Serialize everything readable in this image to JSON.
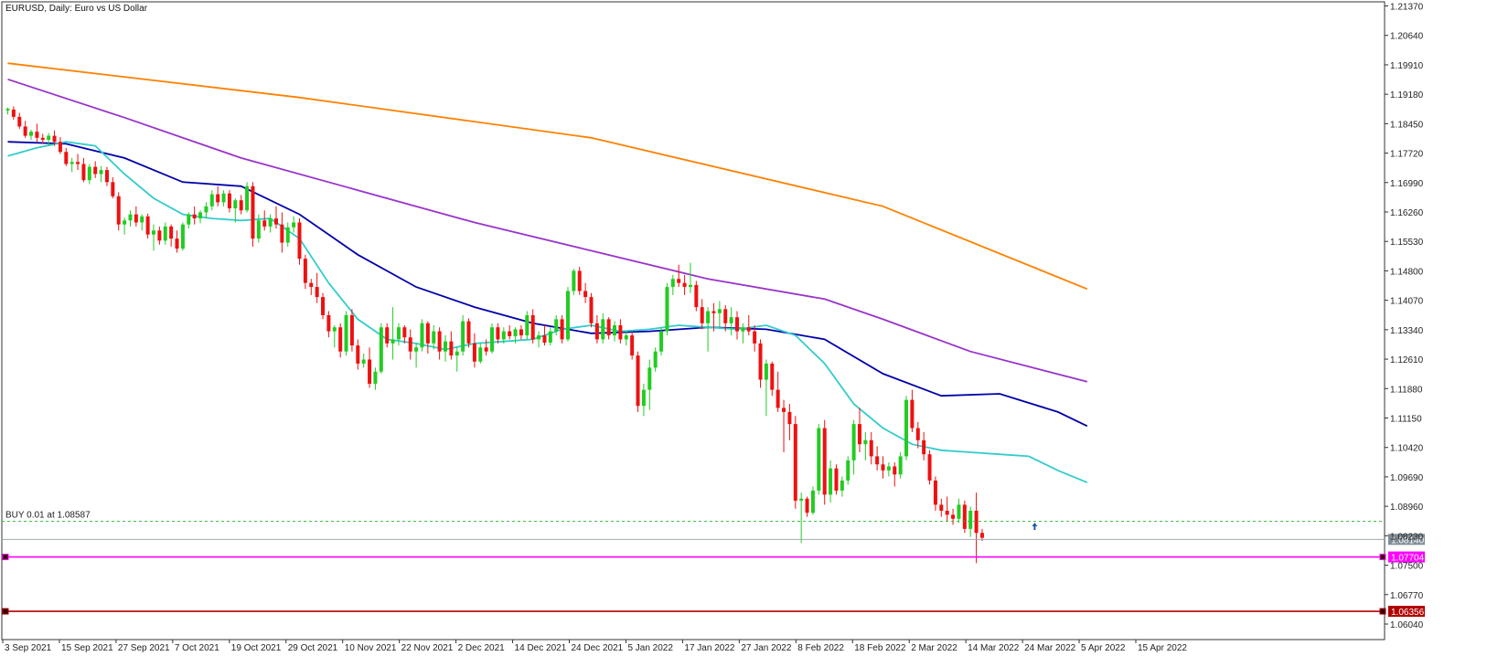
{
  "chart_data": {
    "type": "candlestick",
    "title": "EURUSD, Daily:  Euro vs US Dollar",
    "symbol": "EURUSD",
    "timeframe": "Daily",
    "ylim": [
      1.0575,
      1.2137
    ],
    "y_ticks": [
      "1.21370",
      "1.20640",
      "1.19910",
      "1.19180",
      "1.18450",
      "1.17720",
      "1.16990",
      "1.16260",
      "1.15530",
      "1.14800",
      "1.14070",
      "1.13340",
      "1.12610",
      "1.11880",
      "1.11150",
      "1.10420",
      "1.09690",
      "1.08960",
      "1.08230",
      "1.07500",
      "1.06770",
      "1.06040"
    ],
    "x_ticks": [
      "3 Sep 2021",
      "15 Sep 2021",
      "27 Sep 2021",
      "7 Oct 2021",
      "19 Oct 2021",
      "29 Oct 2021",
      "10 Nov 2021",
      "22 Nov 2021",
      "2 Dec 2021",
      "14 Dec 2021",
      "24 Dec 2021",
      "5 Jan 2022",
      "17 Jan 2022",
      "27 Jan 2022",
      "8 Feb 2022",
      "18 Feb 2022",
      "2 Mar 2022",
      "14 Mar 2022",
      "24 Mar 2022",
      "5 Apr 2022",
      "15 Apr 2022"
    ],
    "colors": {
      "bull": "#22cc22",
      "bear": "#ee1111",
      "grid_dash": "#33bb33"
    },
    "candles": [
      [
        1.1878,
        1.1885,
        1.1868,
        1.1882
      ],
      [
        1.188,
        1.1888,
        1.1855,
        1.1862
      ],
      [
        1.1862,
        1.1872,
        1.1832,
        1.1838
      ],
      [
        1.1838,
        1.1852,
        1.181,
        1.1815
      ],
      [
        1.1815,
        1.183,
        1.1805,
        1.1825
      ],
      [
        1.1825,
        1.1845,
        1.18,
        1.181
      ],
      [
        1.181,
        1.182,
        1.1795,
        1.1805
      ],
      [
        1.1805,
        1.1822,
        1.179,
        1.1815
      ],
      [
        1.1815,
        1.1828,
        1.179,
        1.18
      ],
      [
        1.18,
        1.1812,
        1.177,
        1.1775
      ],
      [
        1.1775,
        1.1785,
        1.174,
        1.1745
      ],
      [
        1.1745,
        1.176,
        1.1725,
        1.175
      ],
      [
        1.175,
        1.177,
        1.173,
        1.1745
      ],
      [
        1.1745,
        1.176,
        1.17,
        1.1705
      ],
      [
        1.1705,
        1.1745,
        1.1695,
        1.1738
      ],
      [
        1.1738,
        1.1752,
        1.171,
        1.172
      ],
      [
        1.172,
        1.174,
        1.17,
        1.173
      ],
      [
        1.173,
        1.1738,
        1.169,
        1.17
      ],
      [
        1.17,
        1.1712,
        1.166,
        1.1665
      ],
      [
        1.1665,
        1.1675,
        1.158,
        1.1595
      ],
      [
        1.1595,
        1.1612,
        1.157,
        1.1605
      ],
      [
        1.1605,
        1.163,
        1.159,
        1.162
      ],
      [
        1.162,
        1.164,
        1.159,
        1.16
      ],
      [
        1.16,
        1.162,
        1.158,
        1.1615
      ],
      [
        1.1615,
        1.1622,
        1.156,
        1.157
      ],
      [
        1.157,
        1.1595,
        1.153,
        1.158
      ],
      [
        1.158,
        1.159,
        1.1545,
        1.1555
      ],
      [
        1.1555,
        1.16,
        1.1545,
        1.159
      ],
      [
        1.159,
        1.1595,
        1.154,
        1.156
      ],
      [
        1.156,
        1.158,
        1.1525,
        1.1535
      ],
      [
        1.1535,
        1.16,
        1.153,
        1.1595
      ],
      [
        1.1595,
        1.1625,
        1.1585,
        1.162
      ],
      [
        1.162,
        1.164,
        1.1595,
        1.161
      ],
      [
        1.161,
        1.163,
        1.1598,
        1.1625
      ],
      [
        1.1625,
        1.165,
        1.161,
        1.164
      ],
      [
        1.164,
        1.168,
        1.163,
        1.167
      ],
      [
        1.167,
        1.169,
        1.164,
        1.165
      ],
      [
        1.165,
        1.168,
        1.164,
        1.1672
      ],
      [
        1.1672,
        1.168,
        1.1625,
        1.1635
      ],
      [
        1.1635,
        1.166,
        1.16,
        1.1655
      ],
      [
        1.1655,
        1.1668,
        1.162,
        1.163
      ],
      [
        1.163,
        1.17,
        1.1625,
        1.169
      ],
      [
        1.169,
        1.17,
        1.154,
        1.156
      ],
      [
        1.156,
        1.162,
        1.155,
        1.1605
      ],
      [
        1.1605,
        1.163,
        1.158,
        1.159
      ],
      [
        1.159,
        1.162,
        1.1575,
        1.161
      ],
      [
        1.161,
        1.164,
        1.1585,
        1.1595
      ],
      [
        1.1595,
        1.1625,
        1.1525,
        1.155
      ],
      [
        1.155,
        1.16,
        1.154,
        1.1588
      ],
      [
        1.1588,
        1.1615,
        1.1575,
        1.16
      ],
      [
        1.16,
        1.161,
        1.1495,
        1.151
      ],
      [
        1.151,
        1.152,
        1.1435,
        1.145
      ],
      [
        1.145,
        1.146,
        1.142,
        1.144
      ],
      [
        1.144,
        1.1475,
        1.14,
        1.1415
      ],
      [
        1.1415,
        1.1425,
        1.136,
        1.137
      ],
      [
        1.137,
        1.138,
        1.1315,
        1.133
      ],
      [
        1.133,
        1.1345,
        1.129,
        1.134
      ],
      [
        1.134,
        1.135,
        1.1265,
        1.128
      ],
      [
        1.128,
        1.138,
        1.127,
        1.137
      ],
      [
        1.137,
        1.1385,
        1.128,
        1.1295
      ],
      [
        1.1295,
        1.131,
        1.1235,
        1.125
      ],
      [
        1.125,
        1.1275,
        1.124,
        1.126
      ],
      [
        1.126,
        1.129,
        1.119,
        1.12
      ],
      [
        1.12,
        1.124,
        1.1185,
        1.123
      ],
      [
        1.123,
        1.135,
        1.1225,
        1.134
      ],
      [
        1.134,
        1.135,
        1.129,
        1.13
      ],
      [
        1.13,
        1.139,
        1.126,
        1.131
      ],
      [
        1.131,
        1.135,
        1.1295,
        1.134
      ],
      [
        1.134,
        1.1345,
        1.13,
        1.1315
      ],
      [
        1.1315,
        1.1335,
        1.126,
        1.128
      ],
      [
        1.128,
        1.13,
        1.124,
        1.129
      ],
      [
        1.129,
        1.136,
        1.128,
        1.135
      ],
      [
        1.135,
        1.1355,
        1.1275,
        1.13
      ],
      [
        1.13,
        1.1345,
        1.1285,
        1.133
      ],
      [
        1.133,
        1.134,
        1.126,
        1.128
      ],
      [
        1.128,
        1.132,
        1.1255,
        1.1305
      ],
      [
        1.1305,
        1.133,
        1.126,
        1.127
      ],
      [
        1.127,
        1.129,
        1.123,
        1.128
      ],
      [
        1.128,
        1.137,
        1.127,
        1.1355
      ],
      [
        1.1355,
        1.1362,
        1.129,
        1.13
      ],
      [
        1.13,
        1.1325,
        1.124,
        1.1255
      ],
      [
        1.1255,
        1.13,
        1.125,
        1.129
      ],
      [
        1.129,
        1.131,
        1.127,
        1.128
      ],
      [
        1.128,
        1.135,
        1.1275,
        1.134
      ],
      [
        1.134,
        1.135,
        1.13,
        1.131
      ],
      [
        1.131,
        1.134,
        1.13,
        1.133
      ],
      [
        1.133,
        1.1345,
        1.131,
        1.1318
      ],
      [
        1.1318,
        1.134,
        1.13,
        1.1335
      ],
      [
        1.1335,
        1.1345,
        1.131,
        1.132
      ],
      [
        1.132,
        1.138,
        1.131,
        1.137
      ],
      [
        1.137,
        1.1385,
        1.13,
        1.131
      ],
      [
        1.131,
        1.133,
        1.129,
        1.132
      ],
      [
        1.132,
        1.1345,
        1.1295,
        1.1302
      ],
      [
        1.1302,
        1.134,
        1.1295,
        1.133
      ],
      [
        1.133,
        1.137,
        1.132,
        1.136
      ],
      [
        1.136,
        1.137,
        1.13,
        1.131
      ],
      [
        1.131,
        1.144,
        1.1305,
        1.143
      ],
      [
        1.143,
        1.1485,
        1.142,
        1.148
      ],
      [
        1.148,
        1.149,
        1.142,
        1.143
      ],
      [
        1.143,
        1.145,
        1.14,
        1.1415
      ],
      [
        1.1415,
        1.1425,
        1.134,
        1.135
      ],
      [
        1.135,
        1.137,
        1.13,
        1.131
      ],
      [
        1.131,
        1.1375,
        1.13,
        1.136
      ],
      [
        1.136,
        1.1365,
        1.131,
        1.132
      ],
      [
        1.132,
        1.1355,
        1.1305,
        1.1345
      ],
      [
        1.1345,
        1.136,
        1.13,
        1.131
      ],
      [
        1.131,
        1.133,
        1.1295,
        1.132
      ],
      [
        1.132,
        1.133,
        1.126,
        1.127
      ],
      [
        1.127,
        1.128,
        1.113,
        1.1145
      ],
      [
        1.1145,
        1.12,
        1.112,
        1.1185
      ],
      [
        1.1185,
        1.126,
        1.1135,
        1.124
      ],
      [
        1.124,
        1.129,
        1.123,
        1.128
      ],
      [
        1.128,
        1.134,
        1.127,
        1.133
      ],
      [
        1.133,
        1.145,
        1.132,
        1.144
      ],
      [
        1.144,
        1.147,
        1.142,
        1.146
      ],
      [
        1.146,
        1.1495,
        1.144,
        1.145
      ],
      [
        1.145,
        1.147,
        1.142,
        1.144
      ],
      [
        1.144,
        1.15,
        1.1425,
        1.1445
      ],
      [
        1.1445,
        1.1455,
        1.138,
        1.139
      ],
      [
        1.139,
        1.141,
        1.1335,
        1.135
      ],
      [
        1.135,
        1.139,
        1.128,
        1.138
      ],
      [
        1.138,
        1.14,
        1.133,
        1.1375
      ],
      [
        1.1375,
        1.1405,
        1.134,
        1.1385
      ],
      [
        1.1385,
        1.1395,
        1.133,
        1.135
      ],
      [
        1.135,
        1.139,
        1.132,
        1.1365
      ],
      [
        1.1365,
        1.138,
        1.131,
        1.133
      ],
      [
        1.133,
        1.135,
        1.13,
        1.134
      ],
      [
        1.134,
        1.137,
        1.132,
        1.133
      ],
      [
        1.133,
        1.1345,
        1.128,
        1.13
      ],
      [
        1.13,
        1.131,
        1.119,
        1.121
      ],
      [
        1.121,
        1.126,
        1.112,
        1.125
      ],
      [
        1.125,
        1.1255,
        1.117,
        1.1185
      ],
      [
        1.1185,
        1.123,
        1.113,
        1.114
      ],
      [
        1.114,
        1.116,
        1.103,
        1.113
      ],
      [
        1.113,
        1.115,
        1.106,
        1.11
      ],
      [
        1.11,
        1.112,
        1.089,
        1.091
      ],
      [
        1.091,
        1.093,
        1.0805,
        1.0915
      ],
      [
        1.0915,
        1.092,
        1.087,
        1.088
      ],
      [
        1.088,
        1.0945,
        1.0875,
        1.0935
      ],
      [
        1.0935,
        1.11,
        1.0925,
        1.109
      ],
      [
        1.109,
        1.111,
        1.09,
        1.0925
      ],
      [
        1.0925,
        1.101,
        1.0905,
        1.099
      ],
      [
        1.099,
        1.1,
        1.0925,
        1.0935
      ],
      [
        1.0935,
        1.097,
        1.092,
        1.096
      ],
      [
        1.096,
        1.102,
        1.095,
        1.101
      ],
      [
        1.101,
        1.111,
        1.0975,
        1.11
      ],
      [
        1.11,
        1.114,
        1.103,
        1.105
      ],
      [
        1.105,
        1.108,
        1.101,
        1.106
      ],
      [
        1.106,
        1.108,
        1.1,
        1.102
      ],
      [
        1.102,
        1.1045,
        1.0985,
        1.1
      ],
      [
        1.1,
        1.102,
        1.0965,
        1.0985
      ],
      [
        1.0985,
        1.1005,
        1.097,
        1.0995
      ],
      [
        1.0995,
        1.1005,
        1.0945,
        1.0975
      ],
      [
        1.0975,
        1.103,
        1.0965,
        1.102
      ],
      [
        1.102,
        1.117,
        1.101,
        1.116
      ],
      [
        1.116,
        1.1185,
        1.108,
        1.109
      ],
      [
        1.109,
        1.1105,
        1.104,
        1.106
      ],
      [
        1.106,
        1.108,
        1.101,
        1.1025
      ],
      [
        1.1025,
        1.1035,
        1.095,
        1.096
      ],
      [
        1.096,
        1.097,
        1.0885,
        1.09
      ],
      [
        1.09,
        1.0915,
        1.087,
        1.0885
      ],
      [
        1.0885,
        1.092,
        1.086,
        1.0875
      ],
      [
        1.0875,
        1.089,
        1.085,
        1.0865
      ],
      [
        1.0865,
        1.0915,
        1.0855,
        1.09
      ],
      [
        1.09,
        1.091,
        1.083,
        1.084
      ],
      [
        1.084,
        1.0895,
        1.082,
        1.0885
      ],
      [
        1.0885,
        1.093,
        1.0755,
        1.083
      ],
      [
        1.083,
        1.084,
        1.081,
        1.0818
      ]
    ],
    "moving_averages": [
      {
        "color": "#ff8000",
        "values": [
          [
            0,
            1.1995
          ],
          [
            50,
            1.191
          ],
          [
            100,
            1.181
          ],
          [
            150,
            1.164
          ],
          [
            185,
            1.1435
          ]
        ]
      },
      {
        "color": "#9933cc",
        "values": [
          [
            0,
            1.1955
          ],
          [
            20,
            1.186
          ],
          [
            40,
            1.176
          ],
          [
            60,
            1.168
          ],
          [
            80,
            1.16
          ],
          [
            100,
            1.153
          ],
          [
            120,
            1.146
          ],
          [
            140,
            1.141
          ],
          [
            150,
            1.136
          ],
          [
            165,
            1.128
          ],
          [
            185,
            1.1205
          ]
        ]
      },
      {
        "color": "#0000aa",
        "values": [
          [
            0,
            1.18
          ],
          [
            10,
            1.1795
          ],
          [
            20,
            1.176
          ],
          [
            30,
            1.17
          ],
          [
            40,
            1.169
          ],
          [
            50,
            1.162
          ],
          [
            60,
            1.152
          ],
          [
            70,
            1.144
          ],
          [
            80,
            1.139
          ],
          [
            90,
            1.135
          ],
          [
            100,
            1.1325
          ],
          [
            110,
            1.133
          ],
          [
            120,
            1.134
          ],
          [
            130,
            1.1335
          ],
          [
            140,
            1.131
          ],
          [
            150,
            1.1225
          ],
          [
            160,
            1.117
          ],
          [
            170,
            1.1175
          ],
          [
            180,
            1.113
          ],
          [
            185,
            1.1095
          ]
        ]
      },
      {
        "color": "#33cccc",
        "values": [
          [
            0,
            1.1765
          ],
          [
            5,
            1.1785
          ],
          [
            10,
            1.18
          ],
          [
            15,
            1.179
          ],
          [
            20,
            1.172
          ],
          [
            25,
            1.166
          ],
          [
            30,
            1.162
          ],
          [
            35,
            1.161
          ],
          [
            40,
            1.1605
          ],
          [
            45,
            1.161
          ],
          [
            50,
            1.156
          ],
          [
            55,
            1.145
          ],
          [
            60,
            1.136
          ],
          [
            65,
            1.131
          ],
          [
            70,
            1.13
          ],
          [
            75,
            1.1285
          ],
          [
            80,
            1.13
          ],
          [
            85,
            1.1305
          ],
          [
            90,
            1.131
          ],
          [
            95,
            1.1335
          ],
          [
            100,
            1.1345
          ],
          [
            105,
            1.133
          ],
          [
            110,
            1.1335
          ],
          [
            115,
            1.1345
          ],
          [
            120,
            1.134
          ],
          [
            125,
            1.1335
          ],
          [
            130,
            1.1345
          ],
          [
            135,
            1.132
          ],
          [
            140,
            1.125
          ],
          [
            145,
            1.115
          ],
          [
            150,
            1.109
          ],
          [
            155,
            1.105
          ],
          [
            160,
            1.1035
          ],
          [
            165,
            1.103
          ],
          [
            170,
            1.1025
          ],
          [
            175,
            1.102
          ],
          [
            180,
            1.0985
          ],
          [
            185,
            1.0955
          ]
        ]
      }
    ],
    "horizontal_lines": [
      {
        "price": 1.08587,
        "style": "dashed",
        "color": "#33bb33",
        "label": "BUY 0.01 at 1.08587"
      },
      {
        "price": 1.0814,
        "style": "solid",
        "color": "#a0a8b0",
        "tag": "1.08140",
        "tag_bg": "#7f8c96"
      },
      {
        "price": 1.07704,
        "style": "solid",
        "color": "#ff00ff",
        "tag": "1.07704",
        "tag_bg": "#ff00ff"
      },
      {
        "price": 1.06356,
        "style": "solid",
        "color": "#b00000",
        "tag": "1.06356",
        "tag_bg": "#b00000"
      }
    ],
    "buy_marker": {
      "index": 176,
      "price": 1.086
    },
    "grid": false
  }
}
